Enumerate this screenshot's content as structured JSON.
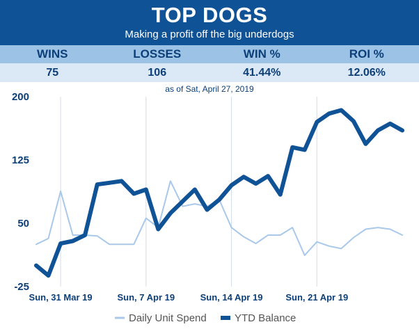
{
  "header": {
    "title": "TOP DOGS",
    "subtitle": "Making a profit off the big underdogs"
  },
  "stats": [
    {
      "label": "WINS",
      "value": "75"
    },
    {
      "label": "LOSSES",
      "value": "106"
    },
    {
      "label": "WIN %",
      "value": "41.44%"
    },
    {
      "label": "ROI %",
      "value": "12.06%"
    }
  ],
  "as_of": "as of Sat, April 27, 2019",
  "colors": {
    "banner": "#0f5296",
    "daily_line": "#a9c8ea",
    "ytd_line": "#0f5296",
    "text": "#0c3f78"
  },
  "chart_data": {
    "type": "line",
    "title": "",
    "xlabel": "",
    "ylabel": "",
    "ylim": [
      -25,
      200
    ],
    "yticks": [
      "200",
      "125",
      "50",
      "-25"
    ],
    "xticks": [
      "Sun, 31 Mar 19",
      "Sun, 7 Apr 19",
      "Sun, 14 Apr 19",
      "Sun, 21 Apr 19"
    ],
    "xtick_index": [
      2,
      9,
      16,
      23
    ],
    "grid": "vertical",
    "legend": "bottom",
    "series": [
      {
        "name": "Daily Unit Spend",
        "style": "thin",
        "values": [
          25,
          32,
          88,
          36,
          36,
          35,
          25,
          25,
          25,
          56,
          45,
          100,
          70,
          73,
          70,
          78,
          45,
          34,
          26,
          36,
          36,
          45,
          12,
          28,
          23,
          20,
          33,
          43,
          45,
          43,
          36
        ]
      },
      {
        "name": "YTD Balance",
        "style": "thick",
        "values": [
          0,
          -12,
          26,
          29,
          36,
          96,
          98,
          100,
          85,
          90,
          43,
          62,
          76,
          90,
          66,
          78,
          95,
          105,
          97,
          106,
          84,
          140,
          137,
          170,
          180,
          184,
          171,
          144,
          160,
          168,
          160
        ]
      }
    ]
  }
}
